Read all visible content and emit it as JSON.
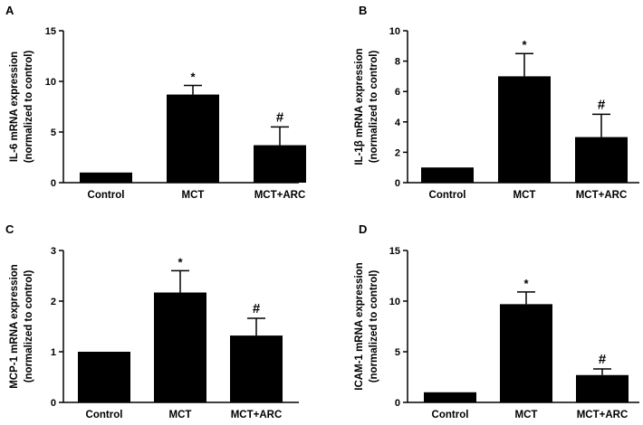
{
  "chart_data": [
    {
      "panel_label": "A",
      "type": "bar",
      "ylabel_lines": [
        "IL-6 mRNA expression",
        "(normalized to control)"
      ],
      "categories": [
        "Control",
        "MCT",
        "MCT+ARC"
      ],
      "values": [
        1.0,
        8.7,
        3.7
      ],
      "errors": [
        0,
        0.9,
        1.8
      ],
      "annotations": [
        "",
        "*",
        "#"
      ],
      "ylim": [
        0,
        15
      ],
      "yticks": [
        0,
        5,
        10,
        15
      ]
    },
    {
      "panel_label": "B",
      "type": "bar",
      "ylabel_lines": [
        "IL-1β mRNA expression",
        "(normalized to control)"
      ],
      "categories": [
        "Control",
        "MCT",
        "MCT+ARC"
      ],
      "values": [
        1.0,
        7.0,
        3.0
      ],
      "errors": [
        0,
        1.5,
        1.5
      ],
      "annotations": [
        "",
        "*",
        "#"
      ],
      "ylim": [
        0,
        10
      ],
      "yticks": [
        0,
        2,
        4,
        6,
        8,
        10
      ]
    },
    {
      "panel_label": "C",
      "type": "bar",
      "ylabel_lines": [
        "MCP-1 mRNA expression",
        "(normalized to control)"
      ],
      "categories": [
        "Control",
        "MCT",
        "MCT+ARC"
      ],
      "values": [
        1.0,
        2.17,
        1.32
      ],
      "errors": [
        0,
        0.43,
        0.34
      ],
      "annotations": [
        "",
        "*",
        "#"
      ],
      "ylim": [
        0,
        3
      ],
      "yticks": [
        0,
        1,
        2,
        3
      ]
    },
    {
      "panel_label": "D",
      "type": "bar",
      "ylabel_lines": [
        "ICAM-1 mRNA expression",
        "(normalized to control)"
      ],
      "categories": [
        "Control",
        "MCT",
        "MCT+ARC"
      ],
      "values": [
        1.0,
        9.7,
        2.7
      ],
      "errors": [
        0,
        1.2,
        0.6
      ],
      "annotations": [
        "",
        "*",
        "#"
      ],
      "ylim": [
        0,
        15
      ],
      "yticks": [
        0,
        5,
        10,
        15
      ]
    }
  ]
}
